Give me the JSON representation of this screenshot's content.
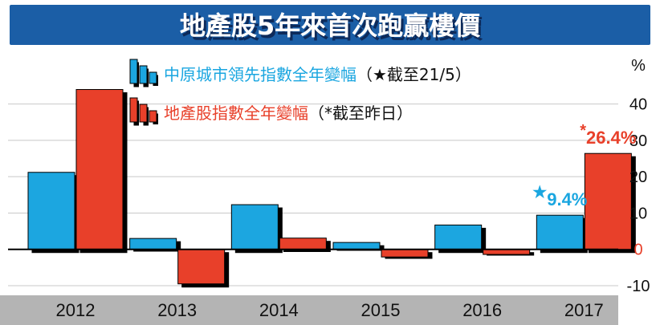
{
  "chart_data": {
    "type": "bar",
    "title": "地產股5年來首次跑贏樓價",
    "y_unit": "%",
    "categories": [
      "2012",
      "2013",
      "2014",
      "2015",
      "2016",
      "2017"
    ],
    "series": [
      {
        "name": "中原城市領先指數全年變幅",
        "note": "（★截至21/5）",
        "color": "#1aa6e0",
        "values": [
          21.2,
          3.0,
          12.3,
          1.9,
          6.7,
          9.4
        ]
      },
      {
        "name": "地產股指數全年變幅",
        "note": "（*截至昨日）",
        "color": "#e8402a",
        "values": [
          44.0,
          -9.5,
          3.1,
          -2.1,
          -1.4,
          26.4
        ]
      }
    ],
    "ylim": [
      -10,
      45
    ],
    "yticks": [
      -10,
      0,
      10,
      20,
      30,
      40
    ],
    "grid": true,
    "annotations": [
      {
        "category": "2017",
        "series": 0,
        "marker": "★",
        "text": "9.4%"
      },
      {
        "category": "2017",
        "series": 1,
        "marker": "*",
        "text": "26.4%"
      }
    ],
    "colors": {
      "title_bg": "#1b5ea6",
      "title_fg": "#ffffff",
      "axis_bar_bg": "#b4b4b4",
      "grid": "#c8c8c8"
    }
  }
}
